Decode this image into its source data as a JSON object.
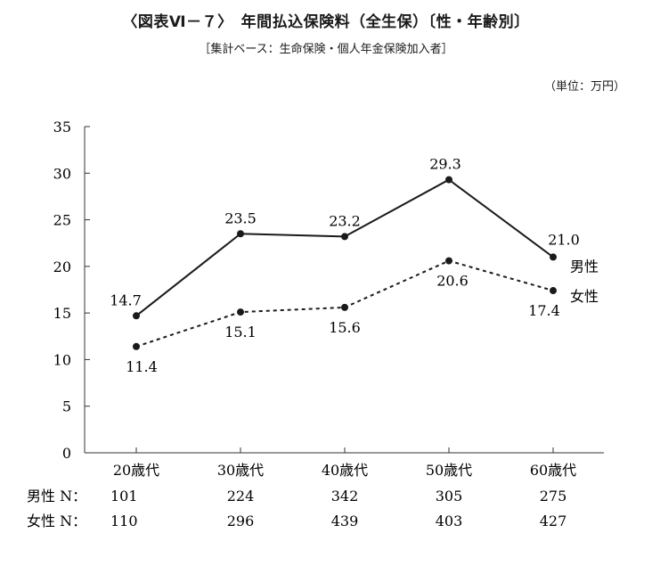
{
  "title": "〈図表Ⅵ－７〉　年間払込保険料（全生保）〔性・年齢別〕",
  "subtitle": "［集計ベース：生命保険・個人年金保険加入者］",
  "unit": "（単位：万円）",
  "chart_data": {
    "type": "line",
    "categories": [
      "20歳代",
      "30歳代",
      "40歳代",
      "50歳代",
      "60歳代"
    ],
    "ylim": [
      0,
      35
    ],
    "yticks": [
      "0",
      "5",
      "10",
      "15",
      "20",
      "25",
      "30",
      "35"
    ],
    "series": [
      {
        "name": "男性",
        "values": [
          14.7,
          23.5,
          23.2,
          29.3,
          21.0
        ],
        "labels": [
          "14.7",
          "23.5",
          "23.2",
          "29.3",
          "21.0"
        ],
        "style": "solid",
        "color": "#1a1a1a"
      },
      {
        "name": "女性",
        "values": [
          11.4,
          15.1,
          15.6,
          20.6,
          17.4
        ],
        "labels": [
          "11.4",
          "15.1",
          "15.6",
          "20.6",
          "17.4"
        ],
        "style": "dotted",
        "color": "#1a1a1a"
      }
    ],
    "sample_rows": [
      {
        "label": "男性 N：",
        "values": [
          "101",
          "224",
          "342",
          "305",
          "275"
        ]
      },
      {
        "label": "女性 N：",
        "values": [
          "110",
          "296",
          "439",
          "403",
          "427"
        ]
      }
    ]
  }
}
